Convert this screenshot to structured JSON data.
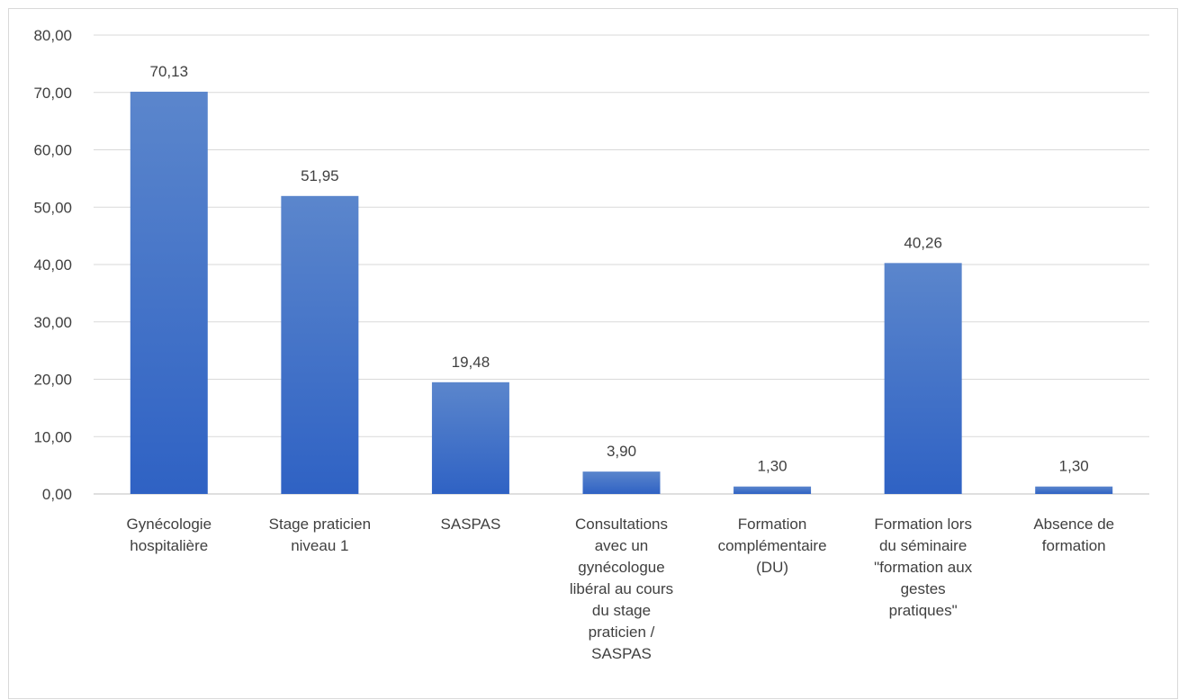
{
  "chart_data": {
    "type": "bar",
    "title": "",
    "xlabel": "",
    "ylabel": "",
    "ylim": [
      0,
      80
    ],
    "yticks": [
      "0,00",
      "10,00",
      "20,00",
      "30,00",
      "40,00",
      "50,00",
      "60,00",
      "70,00",
      "80,00"
    ],
    "grid": true,
    "legend": "none",
    "bar_color_top": "#5b86cc",
    "bar_color_bottom": "#2f62c4",
    "categories": [
      [
        "Gynécologie",
        "hospitalière"
      ],
      [
        "Stage praticien",
        "niveau 1"
      ],
      [
        "SASPAS"
      ],
      [
        "Consultations",
        "avec un",
        "gynécologue",
        "libéral au cours",
        "du stage",
        "praticien /",
        "SASPAS"
      ],
      [
        "Formation",
        "complémentaire",
        "(DU)"
      ],
      [
        "Formation lors",
        "du séminaire",
        "\"formation aux",
        "gestes",
        "pratiques\""
      ],
      [
        "Absence de",
        "formation"
      ]
    ],
    "values": [
      70.13,
      51.95,
      19.48,
      3.9,
      1.3,
      40.26,
      1.3
    ],
    "data_labels": [
      "70,13",
      "51,95",
      "19,48",
      "3,90",
      "1,30",
      "40,26",
      "1,30"
    ]
  }
}
